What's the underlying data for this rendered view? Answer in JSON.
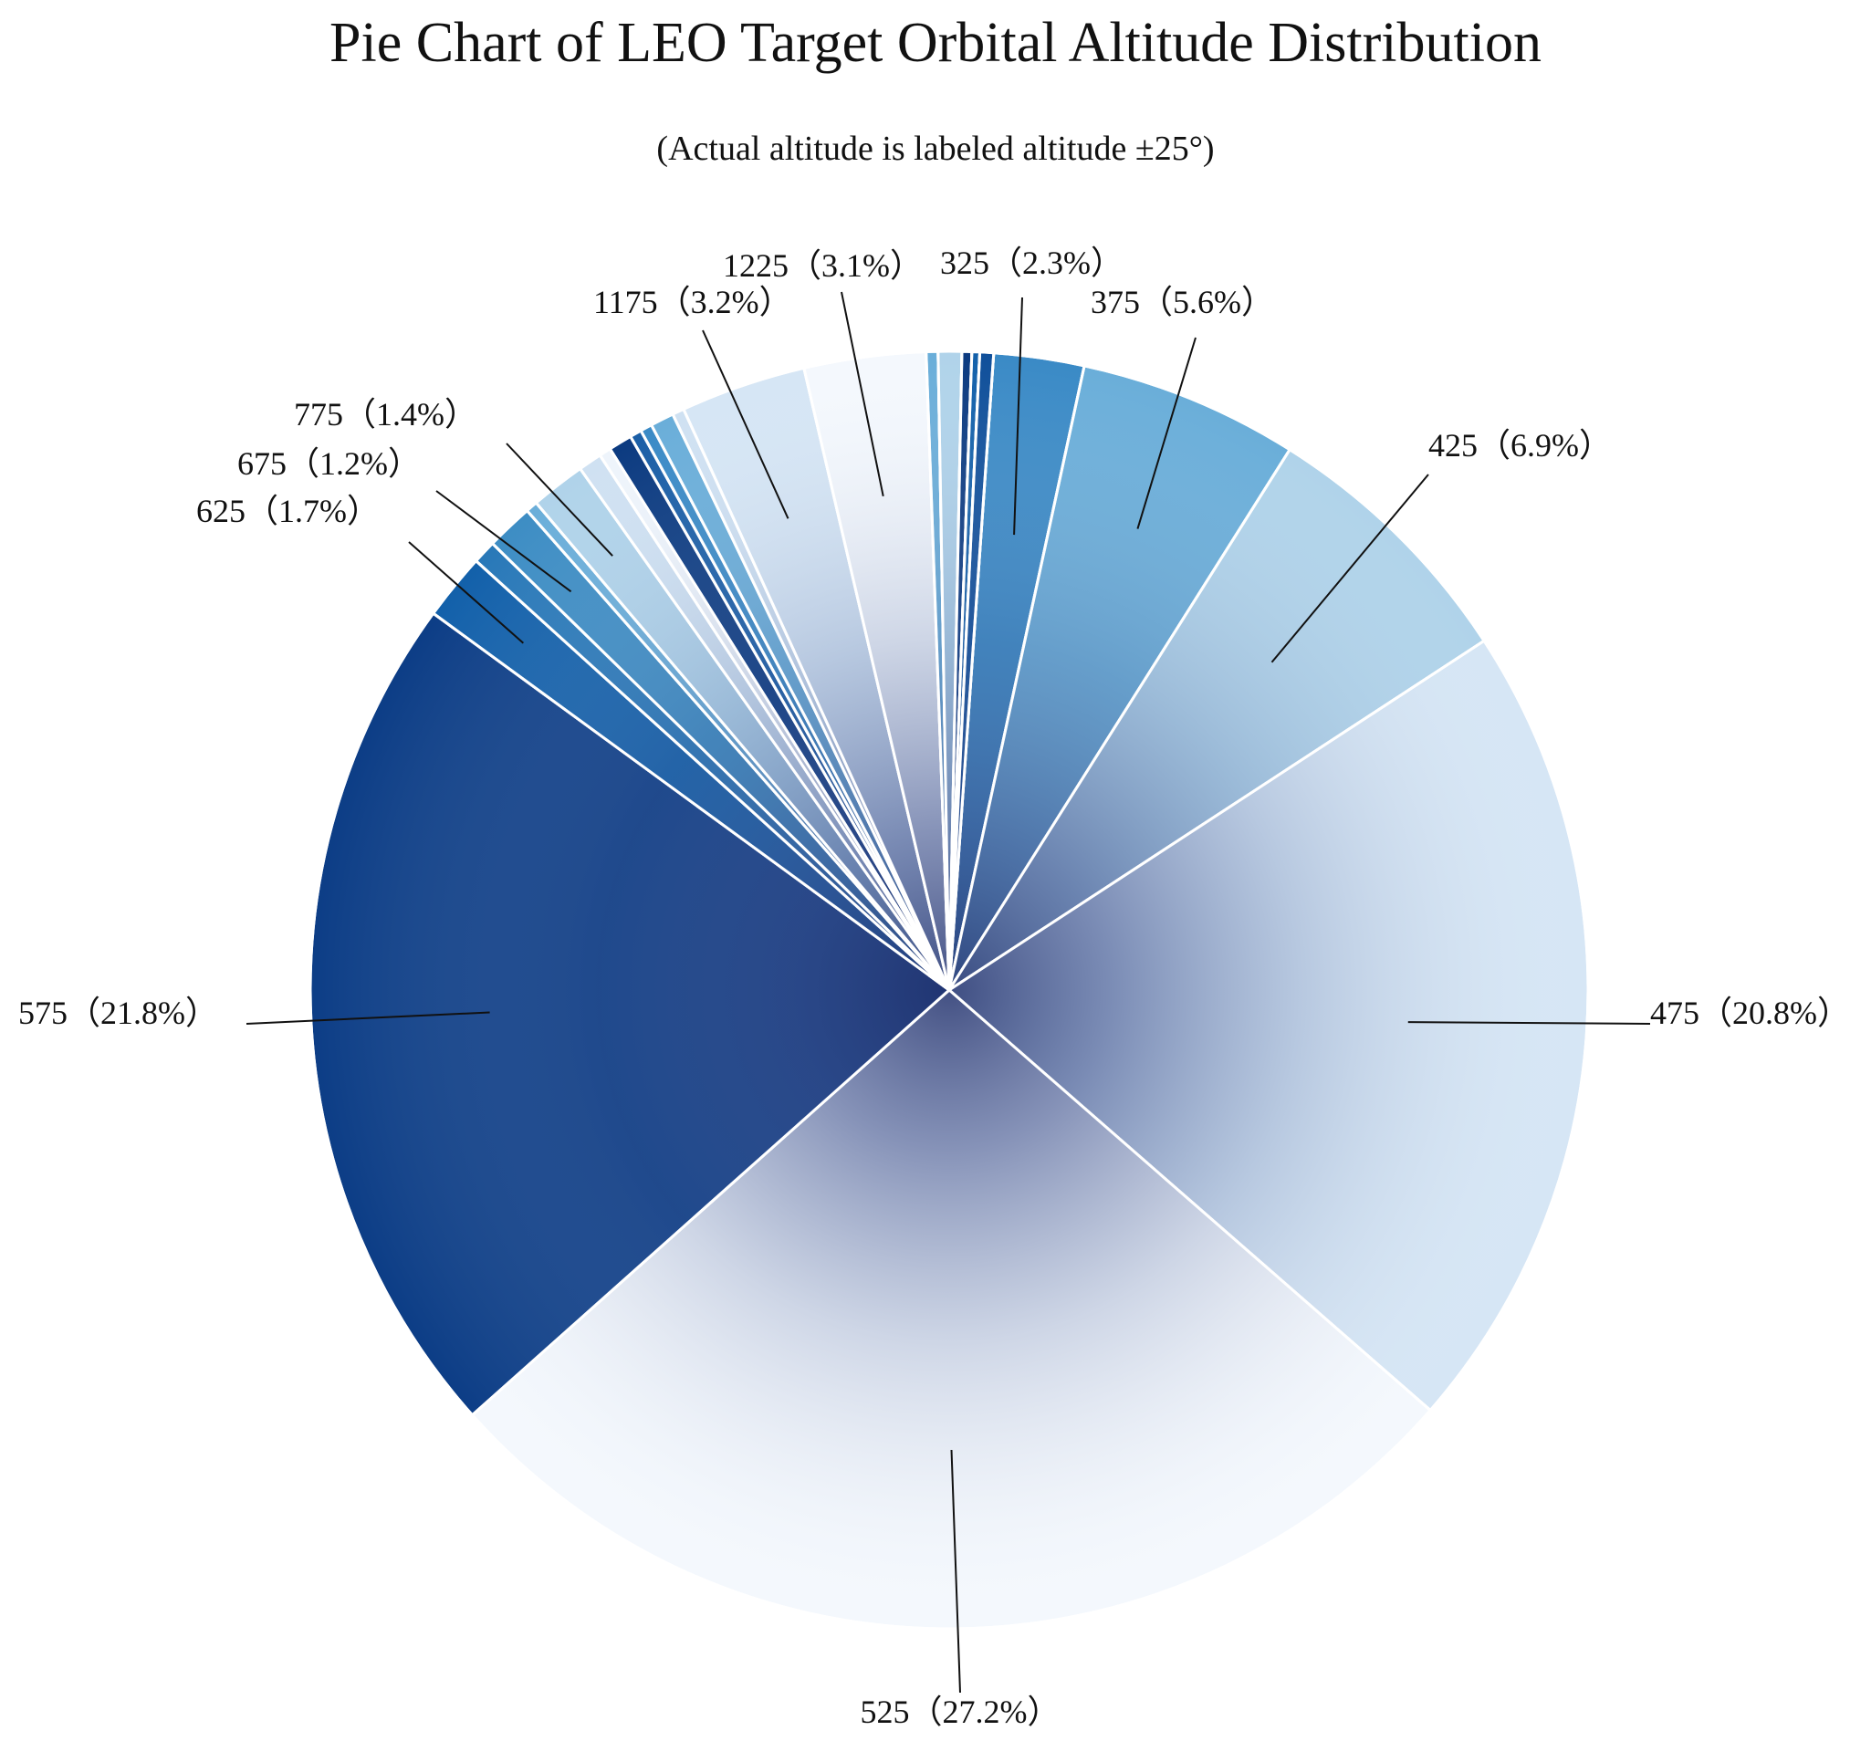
{
  "chart_data": {
    "type": "pie",
    "title": "Pie Chart of LEO Target Orbital Altitude Distribution",
    "subtitle": "(Actual altitude is labeled altitude ±25°)",
    "slices": [
      {
        "label": "325",
        "value": 2.3,
        "text": "325（2.3%）",
        "color": "#3a8ac6"
      },
      {
        "label": "375",
        "value": 5.6,
        "text": "375（5.6%）",
        "color": "#6aaed9"
      },
      {
        "label": "425",
        "value": 6.9,
        "text": "425（6.9%）",
        "color": "#b0d3ea"
      },
      {
        "label": "475",
        "value": 20.8,
        "text": "475（20.8%）",
        "color": "#d6e6f5"
      },
      {
        "label": "525",
        "value": 27.2,
        "text": "525（27.2%）",
        "color": "#f4f8fd"
      },
      {
        "label": "575",
        "value": 21.8,
        "text": "575（21.8%）",
        "color": "#0c3d86"
      },
      {
        "label": "625",
        "value": 1.7,
        "text": "625（1.7%）",
        "color": "#1260aa"
      },
      {
        "label": "",
        "value": 0.6,
        "color": "#2878b8"
      },
      {
        "label": "675",
        "value": 1.2,
        "text": "675（1.2%）",
        "color": "#3d8dc4"
      },
      {
        "label": "",
        "value": 0.3,
        "color": "#6aaed9"
      },
      {
        "label": "775",
        "value": 1.4,
        "text": "775（1.4%）",
        "color": "#b0d3ea"
      },
      {
        "label": "",
        "value": 0.6,
        "color": "#cfe1f2"
      },
      {
        "label": "",
        "value": 0.3,
        "color": "#eef4fb"
      },
      {
        "label": "",
        "value": 0.6,
        "color": "#0b3a80"
      },
      {
        "label": "",
        "value": 0.3,
        "color": "#1a5ea6"
      },
      {
        "label": "",
        "value": 0.3,
        "color": "#3a8ac6"
      },
      {
        "label": "",
        "value": 0.6,
        "color": "#6aaed9"
      },
      {
        "label": "",
        "value": 0.3,
        "color": "#cfe1f2"
      },
      {
        "label": "1175",
        "value": 3.2,
        "text": "1175（3.2%）",
        "color": "#d6e6f5"
      },
      {
        "label": "1225",
        "value": 3.1,
        "text": "1225（3.1%）",
        "color": "#f4f8fd"
      },
      {
        "label": "",
        "value": 0.3,
        "color": "#6aaed9"
      },
      {
        "label": "",
        "value": 0.6,
        "color": "#b0d3ea"
      },
      {
        "label": "",
        "value": 0.25,
        "color": "#0b3a80"
      },
      {
        "label": "",
        "value": 0.2,
        "color": "#1260aa"
      },
      {
        "label": "",
        "value": 0.35,
        "color": "#0f4f9a"
      }
    ]
  }
}
